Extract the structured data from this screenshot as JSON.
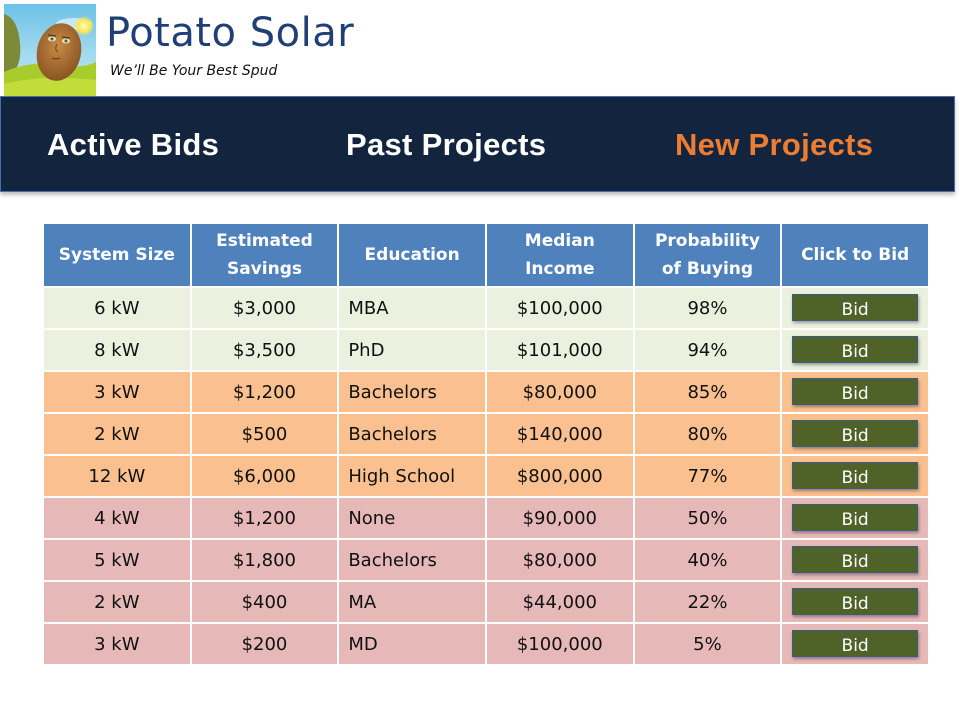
{
  "brand": {
    "title": "Potato Solar",
    "tagline": "We’ll Be Your Best Spud",
    "logo_icon": "potato-character-logo"
  },
  "nav": {
    "items": [
      {
        "label": "Active Bids",
        "active": false
      },
      {
        "label": "Past Projects",
        "active": false
      },
      {
        "label": "New Projects",
        "active": true
      }
    ]
  },
  "colors": {
    "navbar_bg": "#13243f",
    "active_nav": "#ed7d31",
    "header_bg": "#4f81bd",
    "tier_high": "#ebf1de",
    "tier_mid": "#fac090",
    "tier_low": "#e6b9b8",
    "bid_button": "#4f6228"
  },
  "table": {
    "headers": [
      [
        "System Size"
      ],
      [
        "Estimated",
        "Savings"
      ],
      [
        "Education"
      ],
      [
        "Median",
        "Income"
      ],
      [
        "Probability",
        "of Buying"
      ],
      [
        "Click to Bid"
      ]
    ],
    "rows": [
      {
        "size": "6 kW",
        "savings": "$3,000",
        "education": "MBA",
        "income": "$100,000",
        "probability": "98%",
        "tier": "high",
        "bid": "Bid"
      },
      {
        "size": "8 kW",
        "savings": "$3,500",
        "education": "PhD",
        "income": "$101,000",
        "probability": "94%",
        "tier": "high",
        "bid": "Bid"
      },
      {
        "size": "3 kW",
        "savings": "$1,200",
        "education": "Bachelors",
        "income": "$80,000",
        "probability": "85%",
        "tier": "mid",
        "bid": "Bid"
      },
      {
        "size": "2 kW",
        "savings": "$500",
        "education": "Bachelors",
        "income": "$140,000",
        "probability": "80%",
        "tier": "mid",
        "bid": "Bid"
      },
      {
        "size": "12 kW",
        "savings": "$6,000",
        "education": "High School",
        "income": "$800,000",
        "probability": "77%",
        "tier": "mid",
        "bid": "Bid"
      },
      {
        "size": "4 kW",
        "savings": "$1,200",
        "education": "None",
        "income": "$90,000",
        "probability": "50%",
        "tier": "low",
        "bid": "Bid"
      },
      {
        "size": "5 kW",
        "savings": "$1,800",
        "education": "Bachelors",
        "income": "$80,000",
        "probability": "40%",
        "tier": "low",
        "bid": "Bid"
      },
      {
        "size": "2 kW",
        "savings": "$400",
        "education": "MA",
        "income": "$44,000",
        "probability": "22%",
        "tier": "low",
        "bid": "Bid"
      },
      {
        "size": "3 kW",
        "savings": "$200",
        "education": "MD",
        "income": "$100,000",
        "probability": "5%",
        "tier": "low",
        "bid": "Bid"
      }
    ]
  }
}
